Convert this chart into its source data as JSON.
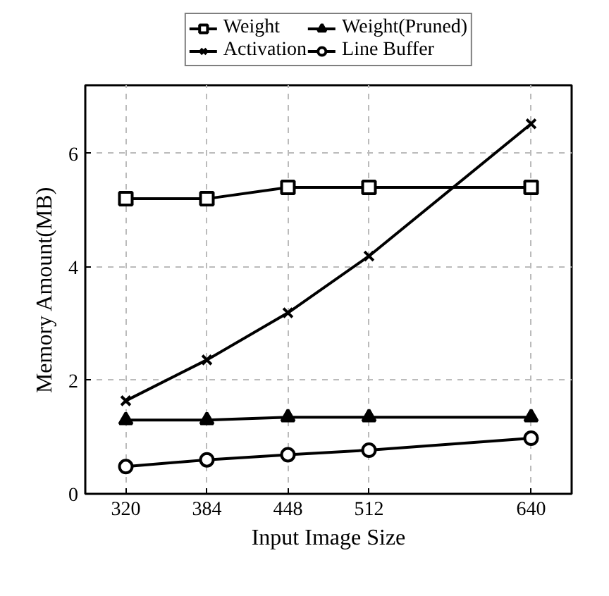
{
  "chart_data": {
    "type": "line",
    "xlabel": "Input Image Size",
    "ylabel": "Memory Amount(MB)",
    "x": [
      320,
      384,
      448,
      512,
      640
    ],
    "xlim": [
      288,
      672
    ],
    "ylim": [
      0,
      7.2
    ],
    "xticks": [
      320,
      384,
      448,
      512,
      640
    ],
    "yticks": [
      0,
      2,
      4,
      6
    ],
    "grid": true,
    "legend": "top",
    "line_style": "solid",
    "series": [
      {
        "name": "Weight",
        "color": "#000000",
        "marker": "square",
        "values": [
          5.2,
          5.2,
          5.4,
          5.4,
          5.4
        ]
      },
      {
        "name": "Weight(Pruned)",
        "color": "#000000",
        "marker": "triangle",
        "values": [
          1.3,
          1.3,
          1.35,
          1.35,
          1.35
        ]
      },
      {
        "name": "Activation",
        "color": "#000000",
        "marker": "cross",
        "values": [
          1.64,
          2.36,
          3.19,
          4.19,
          6.52
        ]
      },
      {
        "name": "Line Buffer",
        "color": "#000000",
        "marker": "circle",
        "values": [
          0.48,
          0.6,
          0.69,
          0.77,
          0.98
        ]
      }
    ]
  }
}
